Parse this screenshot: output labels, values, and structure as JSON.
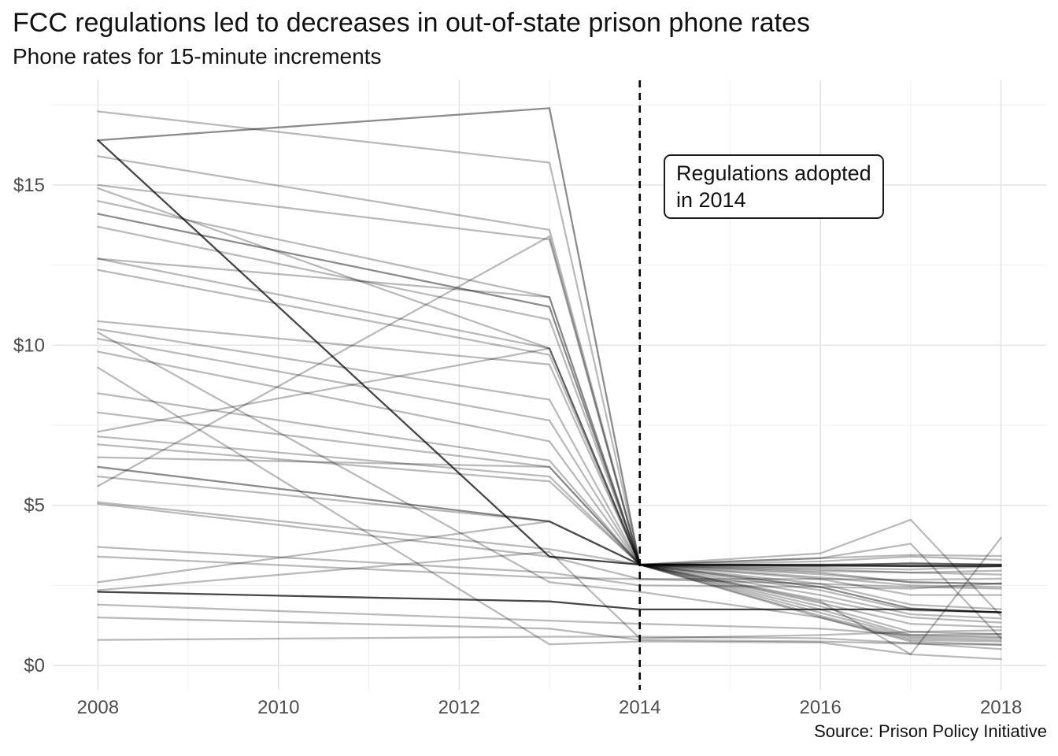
{
  "header": {
    "title": "FCC regulations led to decreases in out-of-state prison phone rates",
    "subtitle": "Phone rates for 15-minute increments"
  },
  "annotation": {
    "line1": "Regulations adopted",
    "line2": "in 2014"
  },
  "source": "Source: Prison Policy Initiative",
  "colors": {
    "background": "#ffffff",
    "line": "#000000",
    "grid_major": "#e4e4e4",
    "grid_minor": "#f0f0f0",
    "axis_text": "#4d4d4d",
    "dashed_line": "#000000",
    "opacity_light": 0.27,
    "opacity_mid": 0.45,
    "opacity_dark": 0.72
  },
  "chart_data": {
    "type": "line",
    "title": "FCC regulations led to decreases in out-of-state prison phone rates",
    "subtitle": "Phone rates for 15-minute increments",
    "xlabel": "",
    "ylabel": "",
    "x_range": [
      2007.5,
      2018.5
    ],
    "y_range": [
      -0.76,
      18.27
    ],
    "x_ticks": [
      {
        "value": 2008,
        "label": "2008"
      },
      {
        "value": 2010,
        "label": "2010"
      },
      {
        "value": 2012,
        "label": "2012"
      },
      {
        "value": 2014,
        "label": "2014"
      },
      {
        "value": 2016,
        "label": "2016"
      },
      {
        "value": 2018,
        "label": "2018"
      }
    ],
    "x_minor_ticks": [
      2009,
      2011,
      2013,
      2015,
      2017
    ],
    "y_ticks": [
      {
        "value": 0,
        "label": "$0"
      },
      {
        "value": 5,
        "label": "$5"
      },
      {
        "value": 10,
        "label": "$10"
      },
      {
        "value": 15,
        "label": "$15"
      }
    ],
    "y_minor_ticks": [
      2.5,
      7.5,
      12.5,
      17.5
    ],
    "grid": true,
    "legend": "none",
    "vline": {
      "x": 2014,
      "style": "dashed",
      "label": "Regulations adopted in 2014"
    },
    "series": [
      {
        "name": "state-01",
        "shade": "light",
        "points": [
          [
            2008,
            17.3
          ],
          [
            2013,
            15.7
          ],
          [
            2014,
            3.15
          ],
          [
            2016,
            2.9
          ],
          [
            2017,
            2.6
          ],
          [
            2018,
            2.55
          ]
        ]
      },
      {
        "name": "state-02",
        "shade": "mid",
        "points": [
          [
            2008,
            16.4
          ],
          [
            2013,
            17.4
          ],
          [
            2014,
            3.15
          ],
          [
            2016,
            3.15
          ],
          [
            2017,
            3.12
          ],
          [
            2018,
            3.15
          ]
        ]
      },
      {
        "name": "state-03",
        "shade": "dark",
        "points": [
          [
            2008,
            16.4
          ],
          [
            2013,
            3.4
          ],
          [
            2014,
            3.15
          ],
          [
            2016,
            3.12
          ],
          [
            2017,
            3.1
          ],
          [
            2018,
            3.1
          ]
        ]
      },
      {
        "name": "state-04",
        "shade": "light",
        "points": [
          [
            2008,
            15.9
          ],
          [
            2013,
            13.6
          ],
          [
            2014,
            3.15
          ],
          [
            2016,
            2.85
          ],
          [
            2017,
            2.6
          ],
          [
            2018,
            2.55
          ]
        ]
      },
      {
        "name": "state-05",
        "shade": "light",
        "points": [
          [
            2008,
            15.0
          ],
          [
            2013,
            13.3
          ],
          [
            2014,
            3.15
          ],
          [
            2016,
            3.0
          ],
          [
            2017,
            2.9
          ],
          [
            2018,
            2.84
          ]
        ]
      },
      {
        "name": "state-06",
        "shade": "light",
        "points": [
          [
            2008,
            14.9
          ],
          [
            2013,
            9.9
          ],
          [
            2014,
            3.15
          ],
          [
            2016,
            2.55
          ],
          [
            2017,
            1.9
          ],
          [
            2018,
            1.76
          ]
        ]
      },
      {
        "name": "state-07",
        "shade": "light",
        "points": [
          [
            2008,
            14.5
          ],
          [
            2013,
            11.5
          ],
          [
            2014,
            3.15
          ],
          [
            2016,
            2.7
          ],
          [
            2017,
            2.2
          ],
          [
            2018,
            2.2
          ]
        ]
      },
      {
        "name": "state-08",
        "shade": "mid",
        "points": [
          [
            2008,
            14.1
          ],
          [
            2013,
            11.2
          ],
          [
            2014,
            3.15
          ],
          [
            2016,
            2.45
          ],
          [
            2017,
            1.78
          ],
          [
            2018,
            1.66
          ]
        ]
      },
      {
        "name": "state-09",
        "shade": "light",
        "points": [
          [
            2008,
            13.7
          ],
          [
            2013,
            10.8
          ],
          [
            2014,
            3.15
          ],
          [
            2016,
            2.35
          ],
          [
            2017,
            1.72
          ],
          [
            2018,
            1.66
          ]
        ]
      },
      {
        "name": "state-10",
        "shade": "light",
        "points": [
          [
            2008,
            12.7
          ],
          [
            2013,
            9.9
          ],
          [
            2014,
            3.15
          ],
          [
            2016,
            2.2
          ],
          [
            2017,
            1.6
          ],
          [
            2018,
            1.47
          ]
        ]
      },
      {
        "name": "state-11",
        "shade": "light",
        "points": [
          [
            2008,
            12.35
          ],
          [
            2013,
            9.7
          ],
          [
            2014,
            3.15
          ],
          [
            2016,
            2.05
          ],
          [
            2017,
            1.5
          ],
          [
            2018,
            1.34
          ]
        ]
      },
      {
        "name": "state-12",
        "shade": "light",
        "points": [
          [
            2008,
            12.7
          ],
          [
            2013,
            11.5
          ],
          [
            2014,
            3.15
          ],
          [
            2016,
            2.75
          ],
          [
            2017,
            2.5
          ],
          [
            2018,
            2.45
          ]
        ]
      },
      {
        "name": "state-13",
        "shade": "light",
        "points": [
          [
            2008,
            10.75
          ],
          [
            2013,
            9.4
          ],
          [
            2014,
            3.15
          ],
          [
            2016,
            1.95
          ],
          [
            2017,
            1.3
          ],
          [
            2018,
            1.2
          ]
        ]
      },
      {
        "name": "state-14",
        "shade": "light",
        "points": [
          [
            2008,
            10.5
          ],
          [
            2013,
            8.3
          ],
          [
            2014,
            3.15
          ],
          [
            2016,
            1.85
          ],
          [
            2017,
            1.05
          ],
          [
            2018,
            1.1
          ]
        ]
      },
      {
        "name": "state-15",
        "shade": "light",
        "points": [
          [
            2008,
            10.4
          ],
          [
            2013,
            2.6
          ],
          [
            2014,
            2.3
          ],
          [
            2016,
            1.5
          ],
          [
            2017,
            0.75
          ],
          [
            2018,
            0.65
          ]
        ]
      },
      {
        "name": "state-16",
        "shade": "light",
        "points": [
          [
            2008,
            10.2
          ],
          [
            2013,
            7.65
          ],
          [
            2014,
            3.15
          ],
          [
            2016,
            1.75
          ],
          [
            2017,
            0.95
          ],
          [
            2018,
            0.98
          ]
        ]
      },
      {
        "name": "state-17",
        "shade": "light",
        "points": [
          [
            2008,
            9.8
          ],
          [
            2013,
            7.0
          ],
          [
            2014,
            3.15
          ],
          [
            2016,
            1.65
          ],
          [
            2017,
            0.9
          ],
          [
            2018,
            0.86
          ]
        ]
      },
      {
        "name": "state-18",
        "shade": "light",
        "points": [
          [
            2008,
            9.3
          ],
          [
            2013,
            0.66
          ],
          [
            2014,
            0.75
          ],
          [
            2016,
            0.72
          ],
          [
            2017,
            0.35
          ],
          [
            2018,
            0.2
          ]
        ]
      },
      {
        "name": "state-19",
        "shade": "light",
        "points": [
          [
            2008,
            8.5
          ],
          [
            2013,
            6.4
          ],
          [
            2014,
            3.15
          ],
          [
            2016,
            1.55
          ],
          [
            2017,
            0.85
          ],
          [
            2018,
            0.8
          ]
        ]
      },
      {
        "name": "state-20",
        "shade": "light",
        "points": [
          [
            2008,
            7.9
          ],
          [
            2013,
            6.2
          ],
          [
            2014,
            3.15
          ],
          [
            2016,
            1.5
          ],
          [
            2017,
            0.8
          ],
          [
            2018,
            0.75
          ]
        ]
      },
      {
        "name": "state-21",
        "shade": "light",
        "points": [
          [
            2008,
            7.3
          ],
          [
            2013,
            9.9
          ],
          [
            2014,
            3.15
          ],
          [
            2016,
            3.35
          ],
          [
            2017,
            3.8
          ],
          [
            2018,
            0.85
          ]
        ]
      },
      {
        "name": "state-22",
        "shade": "light",
        "points": [
          [
            2008,
            7.15
          ],
          [
            2013,
            5.9
          ],
          [
            2014,
            3.15
          ],
          [
            2016,
            3.5
          ],
          [
            2017,
            4.55
          ],
          [
            2018,
            1.55
          ]
        ]
      },
      {
        "name": "state-23",
        "shade": "light",
        "points": [
          [
            2008,
            6.9
          ],
          [
            2013,
            5.75
          ],
          [
            2014,
            3.15
          ],
          [
            2016,
            2.0
          ],
          [
            2017,
            0.35
          ],
          [
            2018,
            3.99
          ]
        ]
      },
      {
        "name": "state-24",
        "shade": "light",
        "points": [
          [
            2008,
            6.5
          ],
          [
            2013,
            6.2
          ],
          [
            2014,
            3.15
          ],
          [
            2016,
            3.35
          ],
          [
            2017,
            3.45
          ],
          [
            2018,
            3.42
          ]
        ]
      },
      {
        "name": "state-25",
        "shade": "mid",
        "points": [
          [
            2008,
            6.2
          ],
          [
            2013,
            4.5
          ],
          [
            2014,
            3.15
          ],
          [
            2016,
            3.15
          ],
          [
            2017,
            3.18
          ],
          [
            2018,
            3.15
          ]
        ]
      },
      {
        "name": "state-26",
        "shade": "light",
        "points": [
          [
            2008,
            5.9
          ],
          [
            2013,
            4.5
          ],
          [
            2014,
            3.15
          ],
          [
            2016,
            3.05
          ],
          [
            2017,
            3.0
          ],
          [
            2018,
            3.1
          ]
        ]
      },
      {
        "name": "state-27",
        "shade": "light",
        "points": [
          [
            2008,
            5.6
          ],
          [
            2013,
            13.4
          ],
          [
            2014,
            3.15
          ],
          [
            2016,
            3.25
          ],
          [
            2017,
            3.4
          ],
          [
            2018,
            3.3
          ]
        ]
      },
      {
        "name": "state-28",
        "shade": "light",
        "points": [
          [
            2008,
            5.1
          ],
          [
            2013,
            3.63
          ],
          [
            2014,
            3.15
          ],
          [
            2016,
            2.95
          ],
          [
            2017,
            2.9
          ],
          [
            2018,
            2.96
          ]
        ]
      },
      {
        "name": "state-29",
        "shade": "light",
        "points": [
          [
            2008,
            5.05
          ],
          [
            2013,
            3.4
          ],
          [
            2014,
            2.7
          ],
          [
            2016,
            2.7
          ],
          [
            2017,
            2.68
          ],
          [
            2018,
            2.71
          ]
        ]
      },
      {
        "name": "state-30",
        "shade": "light",
        "points": [
          [
            2008,
            3.7
          ],
          [
            2013,
            2.9
          ],
          [
            2014,
            2.5
          ],
          [
            2016,
            2.45
          ],
          [
            2017,
            2.4
          ],
          [
            2018,
            2.57
          ]
        ]
      },
      {
        "name": "state-31",
        "shade": "light",
        "points": [
          [
            2008,
            3.4
          ],
          [
            2013,
            2.74
          ],
          [
            2014,
            2.7
          ],
          [
            2016,
            2.55
          ],
          [
            2017,
            2.45
          ],
          [
            2018,
            2.4
          ]
        ]
      },
      {
        "name": "state-32",
        "shade": "light",
        "points": [
          [
            2008,
            2.6
          ],
          [
            2013,
            4.5
          ],
          [
            2014,
            3.15
          ],
          [
            2016,
            3.1
          ],
          [
            2017,
            3.2
          ],
          [
            2018,
            3.15
          ]
        ]
      },
      {
        "name": "state-33",
        "shade": "light",
        "points": [
          [
            2008,
            2.35
          ],
          [
            2013,
            3.55
          ],
          [
            2014,
            0.85
          ],
          [
            2016,
            0.95
          ],
          [
            2017,
            1.05
          ],
          [
            2018,
            0.98
          ]
        ]
      },
      {
        "name": "state-34",
        "shade": "dark",
        "points": [
          [
            2008,
            2.3
          ],
          [
            2013,
            2.0
          ],
          [
            2014,
            1.75
          ],
          [
            2016,
            1.75
          ],
          [
            2017,
            1.75
          ],
          [
            2018,
            1.66
          ]
        ]
      },
      {
        "name": "state-35",
        "shade": "light",
        "points": [
          [
            2008,
            1.9
          ],
          [
            2013,
            1.4
          ],
          [
            2014,
            1.3
          ],
          [
            2016,
            1.15
          ],
          [
            2017,
            0.95
          ],
          [
            2018,
            0.9
          ]
        ]
      },
      {
        "name": "state-36",
        "shade": "light",
        "points": [
          [
            2008,
            1.5
          ],
          [
            2013,
            1.15
          ],
          [
            2014,
            0.8
          ],
          [
            2016,
            0.75
          ],
          [
            2017,
            0.68
          ],
          [
            2018,
            0.65
          ]
        ]
      },
      {
        "name": "state-37",
        "shade": "light",
        "points": [
          [
            2008,
            0.8
          ],
          [
            2013,
            0.9
          ],
          [
            2014,
            0.9
          ],
          [
            2016,
            0.85
          ],
          [
            2017,
            0.7
          ],
          [
            2018,
            0.51
          ]
        ]
      }
    ]
  }
}
